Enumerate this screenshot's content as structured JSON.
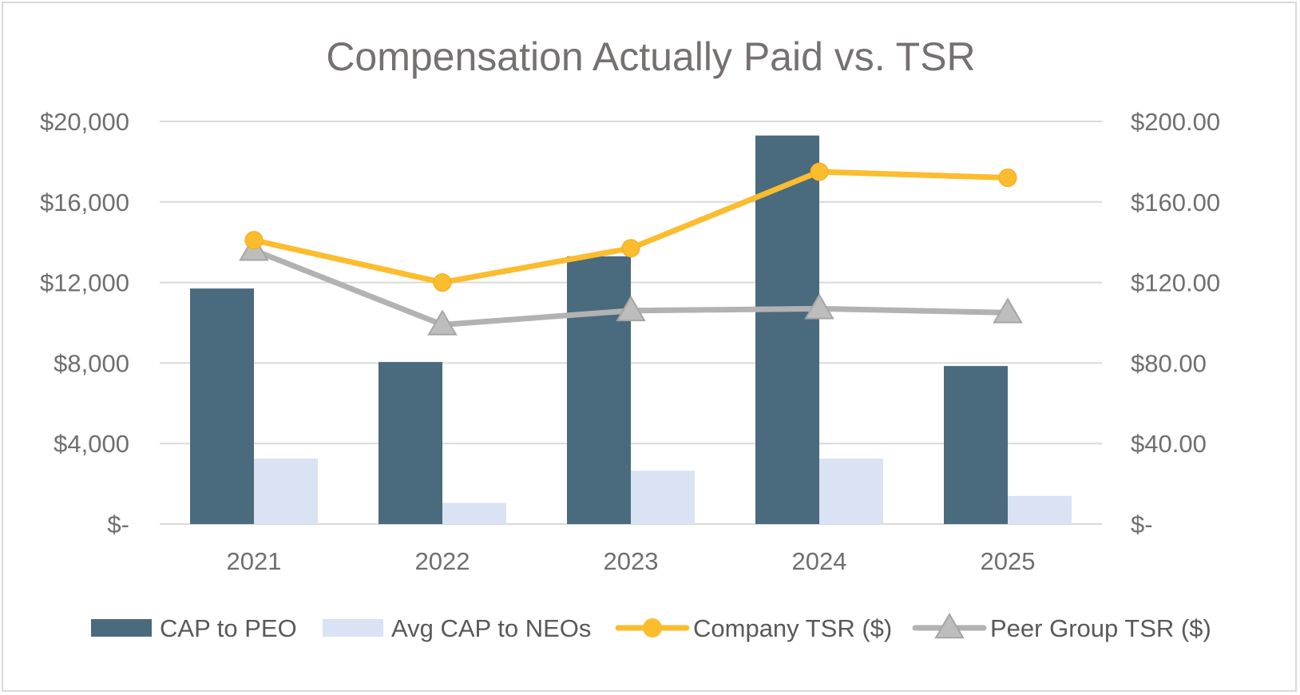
{
  "chart_data": {
    "type": "bar",
    "title": "Compensation Actually Paid vs. TSR",
    "categories": [
      "2021",
      "2022",
      "2023",
      "2024",
      "2025"
    ],
    "y_left": {
      "ylim": [
        0,
        20000
      ],
      "ticks": [
        0,
        4000,
        8000,
        12000,
        16000,
        20000
      ],
      "tick_labels": [
        "$-",
        "$4,000",
        "$8,000",
        "$12,000",
        "$16,000",
        "$20,000"
      ]
    },
    "y_right": {
      "ylim": [
        0,
        200
      ],
      "ticks": [
        0,
        40,
        80,
        120,
        160,
        200
      ],
      "tick_labels": [
        "$-",
        "$40.00",
        "$80.00",
        "$120.00",
        "$160.00",
        "$200.00"
      ]
    },
    "series": [
      {
        "name": "CAP to PEO",
        "kind": "bar",
        "axis": "left",
        "color": "#4a6a7e",
        "values": [
          11700,
          8050,
          13300,
          19300,
          7850
        ]
      },
      {
        "name": "Avg CAP to NEOs",
        "kind": "bar",
        "axis": "left",
        "color": "#dae3f3",
        "values": [
          3250,
          1050,
          2650,
          3250,
          1400
        ]
      },
      {
        "name": "Company TSR ($)",
        "kind": "line",
        "marker": "circle",
        "axis": "right",
        "color": "#fbbc2e",
        "values": [
          141,
          120,
          137,
          175,
          172
        ]
      },
      {
        "name": "Peer Group TSR ($)",
        "kind": "line",
        "marker": "triangle",
        "axis": "right",
        "color": "#b2b2b2",
        "values": [
          136,
          99,
          106,
          107,
          105
        ]
      }
    ],
    "legend_position": "bottom"
  }
}
